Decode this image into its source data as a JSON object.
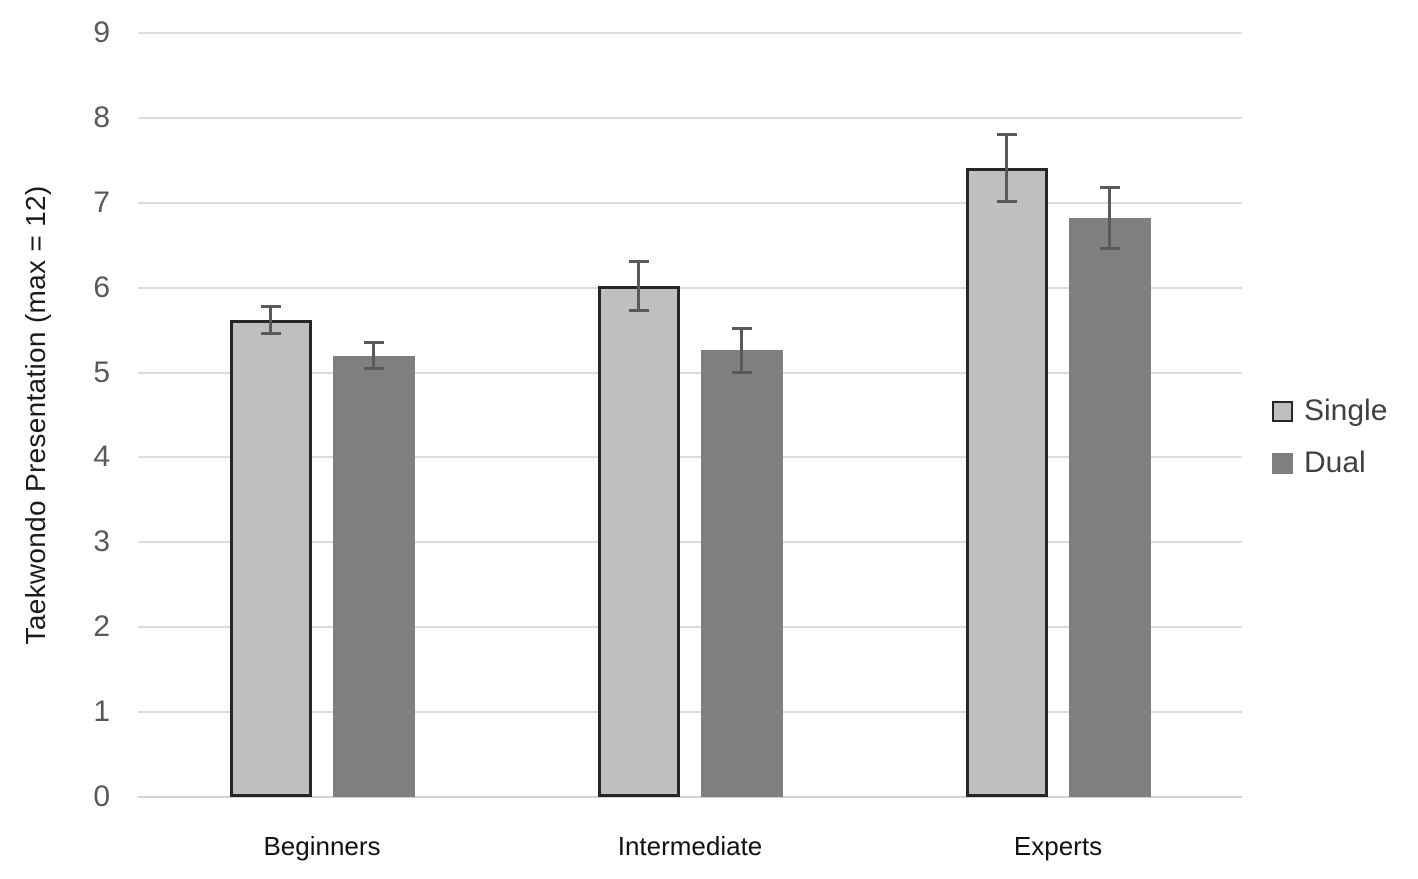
{
  "chart_data": {
    "type": "bar",
    "categories": [
      "Beginners",
      "Intermediate",
      "Experts"
    ],
    "series": [
      {
        "name": "Single",
        "values": [
          5.62,
          6.02,
          7.41
        ],
        "errors": [
          0.16,
          0.3,
          0.4
        ]
      },
      {
        "name": "Dual",
        "values": [
          5.2,
          5.26,
          6.82
        ],
        "errors": [
          0.16,
          0.26,
          0.37
        ]
      }
    ],
    "title": "",
    "xlabel": "",
    "ylabel": "Taekwondo Presentation (max = 12)",
    "ylim": [
      0,
      9
    ],
    "yticks": [
      0,
      1,
      2,
      3,
      4,
      5,
      6,
      7,
      8,
      9
    ],
    "grid": true,
    "legend_position": "right",
    "error_bars": true,
    "colors": {
      "single_fill": "#bfbfbf",
      "single_border": "#262626",
      "dual_fill": "#7f7f7f",
      "gridline": "#dcdcdc",
      "error_bar": "#595959",
      "tick_label": "#595959",
      "axis_label": "#1a1a1a",
      "legend_text": "#404040"
    }
  }
}
